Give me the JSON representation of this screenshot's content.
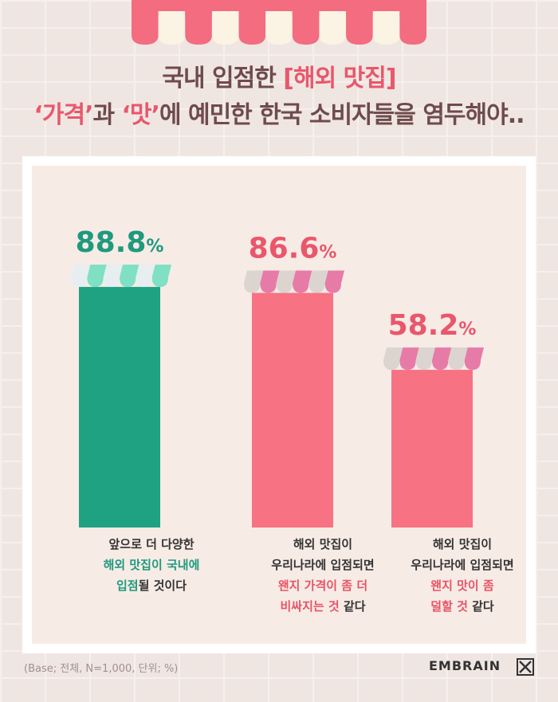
{
  "title": {
    "line1_pre": "국내 입점한 ",
    "line1_hl": "[해외 맛집]",
    "line2_hl1": "‘가격’",
    "line2_mid": "과 ",
    "line2_hl2": "‘맛’",
    "line2_post": "에 예민한 한국 소비자들을 염두해야.."
  },
  "chart_data": {
    "type": "bar",
    "categories": [
      "앞으로 더 다양한 해외 맛집이 국내에 입점될 것이다",
      "해외 맛집이 우리나라에 입점되면 왠지 가격이 좀 더 비싸지는 것 같다",
      "해외 맛집이 우리나라에 입점되면 왠지 맛이 좀 덜할 것 같다"
    ],
    "values": [
      88.8,
      86.6,
      58.2
    ],
    "value_labels": [
      "88.8",
      "86.6",
      "58.2"
    ],
    "unit": "%",
    "ylim": [
      0,
      100
    ],
    "grid": false,
    "colors": [
      "#1ea282",
      "#f77283",
      "#f77283"
    ],
    "label_colors": [
      "#1e9a7e",
      "#e9576b",
      "#e9576b"
    ],
    "awning_colors": [
      [
        "#7fe0c3",
        "#e6eef2"
      ],
      [
        "#e77ba8",
        "#dcd4cf"
      ],
      [
        "#e77ba8",
        "#dcd4cf"
      ]
    ]
  },
  "captions": [
    {
      "line1": "앞으로 더 다양한",
      "line2": "해외 맛집이 국내에",
      "line3_hl": "입점",
      "line3_rest": "될 것이다"
    },
    {
      "line1": "해외 맛집이",
      "line2": "우리나라에 입점되면",
      "line3": "왠지 가격이 좀 더",
      "line4_hl": "비싸지는 것",
      "line4_rest": " 같다"
    },
    {
      "line1": "해외 맛집이",
      "line2": "우리나라에 입점되면",
      "line3": "왠지 맛이 좀",
      "line4_hl": "덜할 것",
      "line4_rest": " 같다"
    }
  ],
  "footer": {
    "base": "(Base; 전체, N=1,000, 단위; %)",
    "brand": "EMBRAIN"
  }
}
